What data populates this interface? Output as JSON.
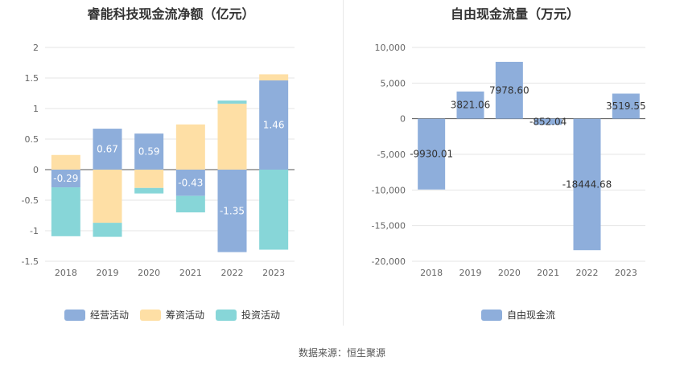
{
  "chart_data": [
    {
      "type": "bar",
      "stacked": true,
      "title": "睿能科技现金流净额（亿元）",
      "categories": [
        "2018",
        "2019",
        "2020",
        "2021",
        "2022",
        "2023"
      ],
      "ylim": [
        -1.5,
        2
      ],
      "yticks": [
        "2",
        "1.5",
        "1",
        "0.5",
        "0",
        "-0.5",
        "-1",
        "-1.5"
      ],
      "ytick_values": [
        2,
        1.5,
        1,
        0.5,
        0,
        -0.5,
        -1,
        -1.5
      ],
      "grid": true,
      "legend_position": "bottom",
      "series": [
        {
          "name": "经营活动",
          "color": "#8eaedb",
          "values": [
            -0.29,
            0.67,
            0.59,
            -0.43,
            -1.35,
            1.46
          ],
          "labels": [
            "-0.29",
            "0.67",
            "0.59",
            "-0.43",
            "-1.35",
            "1.46"
          ]
        },
        {
          "name": "筹资活动",
          "color": "#fedfa5",
          "values": [
            0.24,
            -0.87,
            -0.3,
            0.74,
            1.08,
            0.1
          ],
          "labels": []
        },
        {
          "name": "投资活动",
          "color": "#87d6d8",
          "values": [
            -0.8,
            -0.23,
            -0.09,
            -0.27,
            0.05,
            -1.31
          ],
          "labels": []
        }
      ]
    },
    {
      "type": "bar",
      "title": "自由现金流量（万元）",
      "categories": [
        "2018",
        "2019",
        "2020",
        "2021",
        "2022",
        "2023"
      ],
      "ylim": [
        -20000,
        10000
      ],
      "yticks": [
        "10,000",
        "5,000",
        "0",
        "-5,000",
        "-10,000",
        "-15,000",
        "-20,000"
      ],
      "ytick_values": [
        10000,
        5000,
        0,
        -5000,
        -10000,
        -15000,
        -20000
      ],
      "grid": true,
      "legend_position": "bottom",
      "series": [
        {
          "name": "自由现金流",
          "color": "#8eaedb",
          "values": [
            -9930.01,
            3821.06,
            7978.6,
            -852.04,
            -18444.68,
            3519.55
          ],
          "labels": [
            "-9930.01",
            "3821.06",
            "7978.60",
            "-852.04",
            "-18444.68",
            "3519.55"
          ]
        }
      ]
    }
  ],
  "footer": {
    "source": "数据来源：恒生聚源"
  }
}
